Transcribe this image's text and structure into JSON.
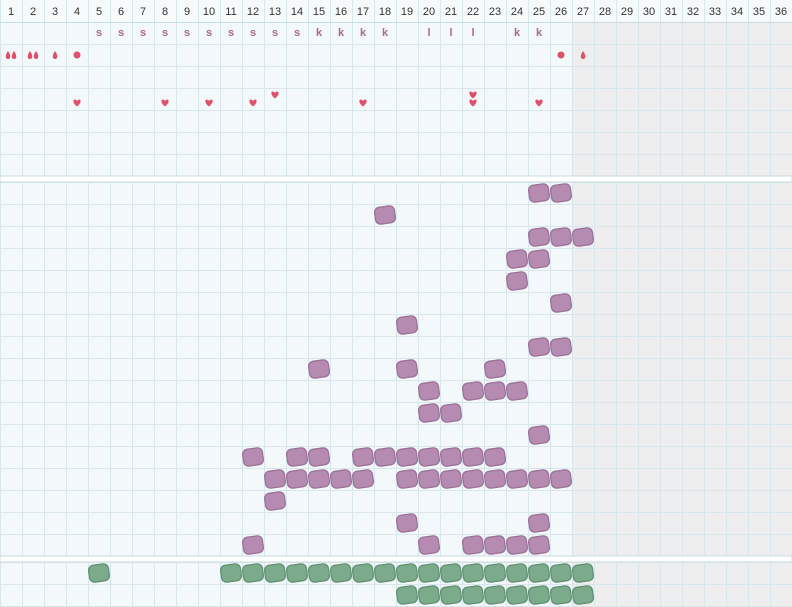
{
  "days": [
    1,
    2,
    3,
    4,
    5,
    6,
    7,
    8,
    9,
    10,
    11,
    12,
    13,
    14,
    15,
    16,
    17,
    18,
    19,
    20,
    21,
    22,
    23,
    24,
    25,
    26,
    27,
    28,
    29,
    30,
    31,
    32,
    33,
    34,
    35,
    36
  ],
  "shaded_from": 27,
  "letters": [
    {
      "day": 5,
      "text": "s"
    },
    {
      "day": 6,
      "text": "s"
    },
    {
      "day": 7,
      "text": "s"
    },
    {
      "day": 8,
      "text": "s"
    },
    {
      "day": 9,
      "text": "s"
    },
    {
      "day": 10,
      "text": "s"
    },
    {
      "day": 11,
      "text": "s"
    },
    {
      "day": 12,
      "text": "s"
    },
    {
      "day": 13,
      "text": "s"
    },
    {
      "day": 14,
      "text": "s"
    },
    {
      "day": 15,
      "text": "k"
    },
    {
      "day": 16,
      "text": "k"
    },
    {
      "day": 17,
      "text": "k"
    },
    {
      "day": 18,
      "text": "k"
    },
    {
      "day": 20,
      "text": "l"
    },
    {
      "day": 21,
      "text": "l"
    },
    {
      "day": 22,
      "text": "l"
    },
    {
      "day": 24,
      "text": "k"
    },
    {
      "day": 25,
      "text": "k"
    }
  ],
  "drops": [
    {
      "day": 1,
      "count": 2
    },
    {
      "day": 2,
      "count": 2
    },
    {
      "day": 3,
      "count": 1
    },
    {
      "day": 27,
      "count": 1
    }
  ],
  "dots": [
    4,
    26
  ],
  "hearts": [
    4,
    8,
    10,
    12,
    17,
    22,
    25
  ],
  "hearts_raised": [
    13,
    22
  ],
  "purple_rows": [
    [
      25,
      26
    ],
    [
      18
    ],
    [
      25,
      26,
      27
    ],
    [
      24,
      25
    ],
    [
      24
    ],
    [
      26
    ],
    [
      19
    ],
    [
      25,
      26
    ],
    [
      15,
      19,
      23
    ],
    [
      20,
      22,
      23,
      24
    ],
    [
      20,
      21
    ],
    [
      25
    ],
    [
      12,
      14,
      15,
      17,
      18,
      19,
      20,
      21,
      22,
      23
    ],
    [
      13,
      14,
      15,
      16,
      17,
      19,
      20,
      21,
      22,
      23,
      24,
      25,
      26
    ],
    [
      13
    ],
    [
      19,
      25
    ],
    [
      12,
      20,
      22,
      23,
      24,
      25
    ]
  ],
  "green_rows": [
    [
      5,
      11,
      12,
      13,
      14,
      15,
      16,
      17,
      18,
      19,
      20,
      21,
      22,
      23,
      24,
      25,
      26,
      27
    ],
    [
      19,
      20,
      21,
      22,
      23,
      24,
      25,
      26,
      27
    ]
  ]
}
